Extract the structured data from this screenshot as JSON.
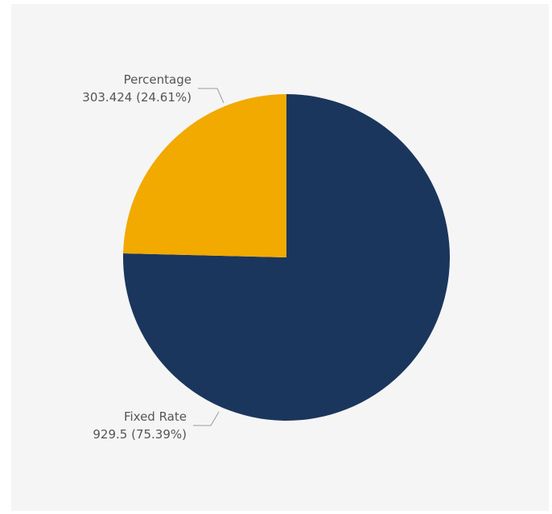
{
  "chart_data": {
    "type": "pie",
    "start_angle_deg": 0,
    "direction": "clockwise",
    "colors": {
      "background": "#f5f5f5",
      "leader_line": "#9a9a9a"
    },
    "slices": [
      {
        "name": "Fixed Rate",
        "value": 929.5,
        "percent": 75.39,
        "display_value": "929.5 (75.39%)",
        "color": "#1b365d",
        "label_position": "bottom-left"
      },
      {
        "name": "Percentage",
        "value": 303.424,
        "percent": 24.61,
        "display_value": "303.424 (24.61%)",
        "color": "#f2a900",
        "label_position": "top-left"
      }
    ]
  }
}
